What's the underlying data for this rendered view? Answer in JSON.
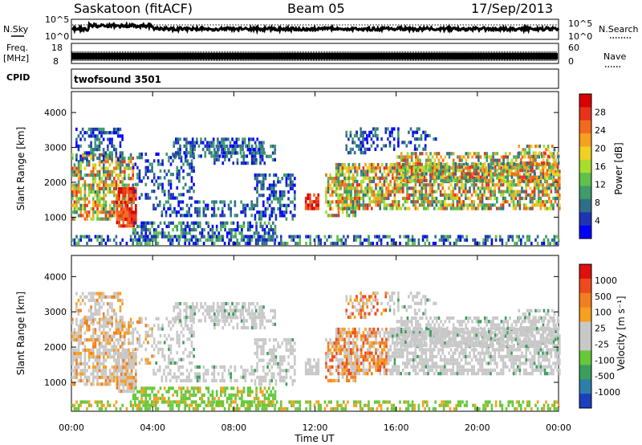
{
  "header": {
    "station": "Saskatoon (fitACF)",
    "beam": "Beam 05",
    "date": "17/Sep/2013"
  },
  "top_panels": {
    "nsky_label": "N.Sky",
    "nsearch_label": "N.Search",
    "noise_ticks_left": [
      "10^5",
      "10^0"
    ],
    "noise_ticks_right": [
      "10^5",
      "10^0"
    ],
    "freq_label": "Freq.",
    "freq_unit": "[MHz]",
    "freq_ticks": [
      "18",
      "8"
    ],
    "nave_label": "Nave",
    "nave_ticks": [
      "60",
      "0"
    ],
    "cpid_label": "CPID",
    "cpid_value": "twofsound 3501"
  },
  "chart_data": [
    {
      "type": "heatmap",
      "name": "power",
      "ylabel": "Slant Range [km]",
      "ylim": [
        180,
        4600
      ],
      "yticks": [
        "1000",
        "2000",
        "3000",
        "4000"
      ],
      "xlim": [
        "00:00",
        "24:00"
      ],
      "colorbar": {
        "label": "Power [dB]",
        "ticks": [
          "4",
          "8",
          "12",
          "16",
          "20",
          "24",
          "28"
        ],
        "colors": [
          "#0000ff",
          "#1d35b5",
          "#2f6e89",
          "#3f9b6a",
          "#5fc04a",
          "#a8dd2c",
          "#f0d020",
          "#f6a020",
          "#f36a1c",
          "#e8321a",
          "#d80000"
        ]
      }
    },
    {
      "type": "heatmap",
      "name": "velocity",
      "ylabel": "Slant Range [km]",
      "ylim": [
        180,
        4600
      ],
      "yticks": [
        "1000",
        "2000",
        "3000",
        "4000"
      ],
      "xlim": [
        "00:00",
        "24:00"
      ],
      "colorbar": {
        "label": "Velocity [m s⁻¹]",
        "ticks": [
          "1000",
          "500",
          "100",
          "25",
          "-25",
          "-100",
          "-500",
          "-1000"
        ],
        "colors": [
          "#1c3fbf",
          "#2e7fa8",
          "#3c9e5c",
          "#66c83b",
          "#c8c8c8",
          "#c8c8c8",
          "#f6a020",
          "#f27e1f",
          "#ee4a1d",
          "#e01010"
        ]
      }
    }
  ],
  "xaxis": {
    "ticks": [
      "00:00",
      "04:00",
      "08:00",
      "12:00",
      "16:00",
      "20:00",
      "00:00"
    ],
    "label": "Time UT"
  }
}
